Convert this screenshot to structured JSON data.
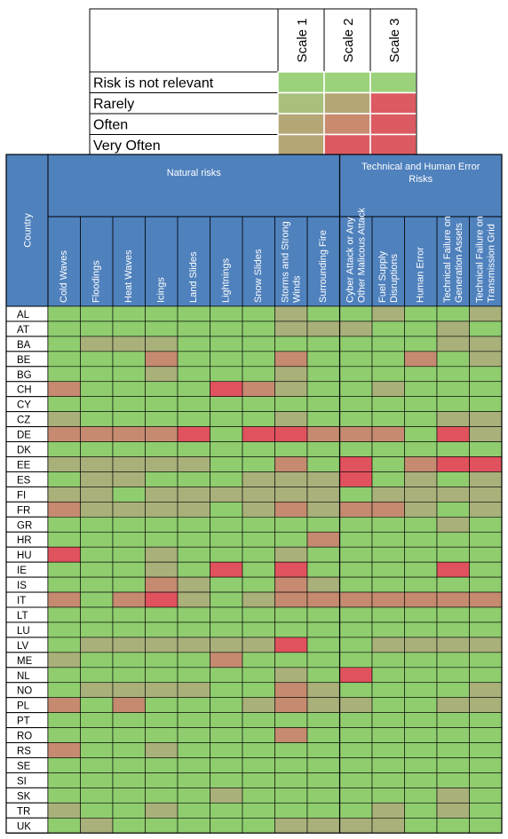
{
  "chart_data": {
    "type": "heatmap",
    "legend": {
      "scales": [
        "Scale 1",
        "Scale 2",
        "Scale 3"
      ],
      "levels": [
        "Risk is not relevant",
        "Rarely",
        "Often",
        "Very Often"
      ],
      "colors": [
        [
          "#9bd17a",
          "#9bd17a",
          "#9bd17a"
        ],
        [
          "#a8c07c",
          "#b5a675",
          "#dc5a62"
        ],
        [
          "#b5a675",
          "#c98a6e",
          "#dc5a62"
        ],
        [
          "#b5a675",
          "#dc5a62",
          "#dc5a62"
        ]
      ]
    },
    "header": {
      "country": "Country",
      "groups": [
        {
          "label": "Natural risks",
          "span": 9
        },
        {
          "label": "Technical and Human Error Risks",
          "span": 5
        }
      ],
      "columns": [
        "Cold Waves",
        "Floodings",
        "Heat Waves",
        "Icings",
        "Land Slides",
        "Lightnings",
        "Snow Slides",
        "Storms and Strong Winds",
        "Surrounding Fire",
        "Cyber Attack or Any Other Malicous Attack",
        "Fuel Supply Disruptions",
        "Human Error",
        "Technical Failure on Generation Assets",
        "Technical Failure on Transmission Grid"
      ]
    },
    "colors": {
      "g": "#8fcd6f",
      "o": "#a9b07a",
      "m": "#c58a70",
      "r": "#e0525e",
      "header_bg": "#4f81bd",
      "header_text": "#ffffff"
    },
    "rows": [
      {
        "country": "AL",
        "cells": "gggggggoggoggo"
      },
      {
        "country": "AT",
        "cells": "gggggggoooggog"
      },
      {
        "country": "BA",
        "cells": "goooggggggggoo"
      },
      {
        "country": "BE",
        "cells": "gggmgggmgggmgo"
      },
      {
        "country": "BG",
        "cells": "gggogggogggggg"
      },
      {
        "country": "CH",
        "cells": "mggggrmoggoggg"
      },
      {
        "country": "CY",
        "cells": "gggggggggggggg"
      },
      {
        "country": "CZ",
        "cells": "oggggggoggggoo"
      },
      {
        "country": "DE",
        "cells": "mmmmrgrrmmmgro"
      },
      {
        "country": "DK",
        "cells": "gggggggggggggg"
      },
      {
        "country": "EE",
        "cells": "oooooggmgrgmrr"
      },
      {
        "country": "ES",
        "cells": "googggooorgogo"
      },
      {
        "country": "FI",
        "cells": "oogoooooogoooo"
      },
      {
        "country": "FR",
        "cells": "moooogomommogo"
      },
      {
        "country": "GR",
        "cells": "ggggggggggggog"
      },
      {
        "country": "HR",
        "cells": "ggggggggmggggg"
      },
      {
        "country": "HU",
        "cells": "rggogggogggggg"
      },
      {
        "country": "IE",
        "cells": "gggogrgrggggrg"
      },
      {
        "country": "IS",
        "cells": "gggmoggmoggggg"
      },
      {
        "country": "IT",
        "cells": "mgmrogommmmmmm"
      },
      {
        "country": "LT",
        "cells": "gggggggggggggg"
      },
      {
        "country": "LU",
        "cells": "gggggggggggggg"
      },
      {
        "country": "LV",
        "cells": "goooooorggoooo"
      },
      {
        "country": "ME",
        "cells": "oggggmgggggggg"
      },
      {
        "country": "NL",
        "cells": "gggggggogrgggg"
      },
      {
        "country": "NO",
        "cells": "gooooggmoggggo"
      },
      {
        "country": "PL",
        "cells": "mgmgggomooggoo"
      },
      {
        "country": "PT",
        "cells": "gggggggggggggg"
      },
      {
        "country": "RO",
        "cells": "gggggggmgggggg"
      },
      {
        "country": "RS",
        "cells": "mggogggggggggg"
      },
      {
        "country": "SE",
        "cells": "gggggggggggggg"
      },
      {
        "country": "SI",
        "cells": "gggggggggggggg"
      },
      {
        "country": "SK",
        "cells": "gggggoggggggog"
      },
      {
        "country": "TR",
        "cells": "oggoggggggogog"
      },
      {
        "country": "UK",
        "cells": "gogggggooooggg"
      }
    ]
  }
}
